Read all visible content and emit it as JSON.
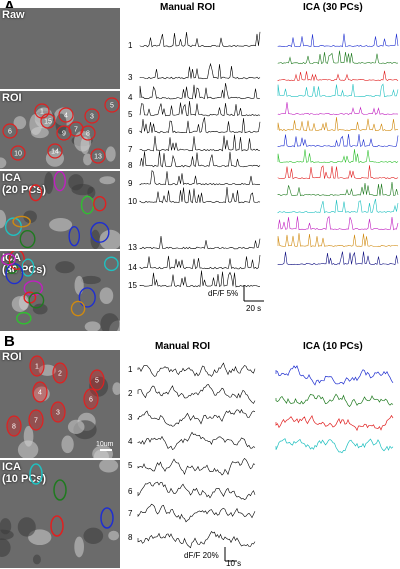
{
  "panel_a": {
    "letter": "A",
    "manual_title": "Manual ROI",
    "ica_title": "ICA (30 PCs)",
    "images": [
      {
        "label": "Raw"
      },
      {
        "label": "ROI"
      },
      {
        "label": "ICA\n(20 PCs)"
      },
      {
        "label": "ICA\n(30 PCs)"
      }
    ],
    "roi_numbers": [
      "1",
      "3",
      "4",
      "5",
      "6",
      "7",
      "8",
      "9",
      "10",
      "13",
      "14",
      "15"
    ],
    "trace_labels": [
      "1",
      "3",
      "4",
      "5",
      "6",
      "7",
      "8",
      "9",
      "10",
      "13",
      "14",
      "15"
    ],
    "ica_colors": [
      "#1f2fd0",
      "#1f7a1f",
      "#e02020",
      "#20c0c0",
      "#c020c0",
      "#d08a10",
      "#1f2fd0",
      "#30c030",
      "#e02020",
      "#1f7a1f",
      "#20c0c0",
      "#c020c0",
      "#d08a10",
      "#101080"
    ],
    "scale_label": "dF/F 5%",
    "time_label": "20 s"
  },
  "panel_b": {
    "letter": "B",
    "manual_title": "Manual ROI",
    "ica_title": "ICA (10 PCs)",
    "images": [
      {
        "label": "ROI"
      },
      {
        "label": "ICA\n(10 PCs)"
      }
    ],
    "roi_numbers": [
      "1",
      "2",
      "3",
      "4",
      "5",
      "6",
      "7",
      "8"
    ],
    "scalebar_label": "10um",
    "trace_labels": [
      "1",
      "2",
      "3",
      "4",
      "5",
      "6",
      "7",
      "8"
    ],
    "ica_colors": [
      "#1f2fd0",
      "#1f7a1f",
      "#e02020",
      "#20c0c0"
    ],
    "scale_label": "dF/F 20%",
    "time_label": "10 s"
  }
}
